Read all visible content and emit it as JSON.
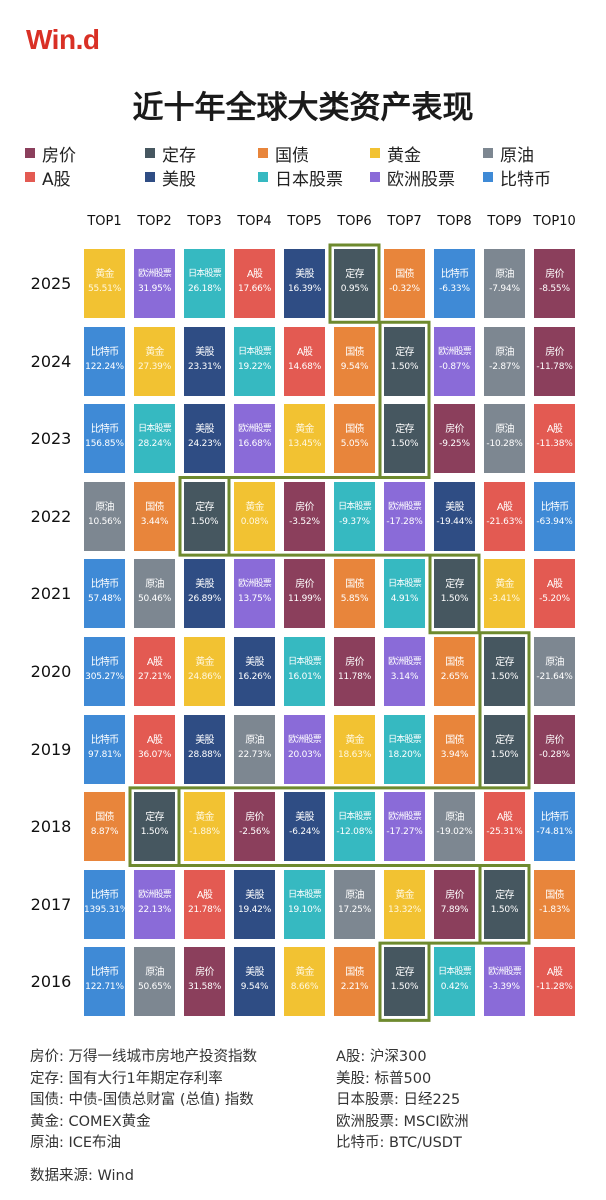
{
  "logo": "Win.d",
  "title": "近十年全球大类资产表现",
  "colors": {
    "房价": "#8b3f5c",
    "定存": "#465760",
    "国债": "#e8853b",
    "黄金": "#f2c232",
    "原油": "#7d8791",
    "A股": "#e35a52",
    "美股": "#2f4d84",
    "日本股票": "#36b9c1",
    "欧洲股票": "#8a6bd8",
    "比特币": "#3f8ad6"
  },
  "legend": [
    {
      "name": "房价",
      "color": "#8b3f5c"
    },
    {
      "name": "定存",
      "color": "#465760"
    },
    {
      "name": "国债",
      "color": "#e8853b"
    },
    {
      "name": "黄金",
      "color": "#f2c232"
    },
    {
      "name": "原油",
      "color": "#7d8791"
    },
    {
      "name": "A股",
      "color": "#e35a52"
    },
    {
      "name": "美股",
      "color": "#2f4d84"
    },
    {
      "name": "日本股票",
      "color": "#36b9c1"
    },
    {
      "name": "欧洲股票",
      "color": "#8a6bd8"
    },
    {
      "name": "比特币",
      "color": "#3f8ad6"
    }
  ],
  "chart_data": {
    "type": "table",
    "title": "近十年全球大类资产表现",
    "columns": [
      "TOP1",
      "TOP2",
      "TOP3",
      "TOP4",
      "TOP5",
      "TOP6",
      "TOP7",
      "TOP8",
      "TOP9",
      "TOP10"
    ],
    "highlight_asset": "定存",
    "rows": [
      {
        "year": "2025",
        "cells": [
          {
            "name": "黄金",
            "value": "55.51%"
          },
          {
            "name": "欧洲股票",
            "value": "31.95%"
          },
          {
            "name": "日本股票",
            "value": "26.18%"
          },
          {
            "name": "A股",
            "value": "17.66%"
          },
          {
            "name": "美股",
            "value": "16.39%"
          },
          {
            "name": "定存",
            "value": "0.95%"
          },
          {
            "name": "国债",
            "value": "-0.32%"
          },
          {
            "name": "比特币",
            "value": "-6.33%"
          },
          {
            "name": "原油",
            "value": "-7.94%"
          },
          {
            "name": "房价",
            "value": "-8.55%"
          }
        ]
      },
      {
        "year": "2024",
        "cells": [
          {
            "name": "比特币",
            "value": "122.24%"
          },
          {
            "name": "黄金",
            "value": "27.39%"
          },
          {
            "name": "美股",
            "value": "23.31%"
          },
          {
            "name": "日本股票",
            "value": "19.22%"
          },
          {
            "name": "A股",
            "value": "14.68%"
          },
          {
            "name": "国债",
            "value": "9.54%"
          },
          {
            "name": "定存",
            "value": "1.50%"
          },
          {
            "name": "欧洲股票",
            "value": "-0.87%"
          },
          {
            "name": "原油",
            "value": "-2.87%"
          },
          {
            "name": "房价",
            "value": "-11.78%"
          }
        ]
      },
      {
        "year": "2023",
        "cells": [
          {
            "name": "比特币",
            "value": "156.85%"
          },
          {
            "name": "日本股票",
            "value": "28.24%"
          },
          {
            "name": "美股",
            "value": "24.23%"
          },
          {
            "name": "欧洲股票",
            "value": "16.68%"
          },
          {
            "name": "黄金",
            "value": "13.45%"
          },
          {
            "name": "国债",
            "value": "5.05%"
          },
          {
            "name": "定存",
            "value": "1.50%"
          },
          {
            "name": "房价",
            "value": "-9.25%"
          },
          {
            "name": "原油",
            "value": "-10.28%"
          },
          {
            "name": "A股",
            "value": "-11.38%"
          }
        ]
      },
      {
        "year": "2022",
        "cells": [
          {
            "name": "原油",
            "value": "10.56%"
          },
          {
            "name": "国债",
            "value": "3.44%"
          },
          {
            "name": "定存",
            "value": "1.50%"
          },
          {
            "name": "黄金",
            "value": "0.08%"
          },
          {
            "name": "房价",
            "value": "-3.52%"
          },
          {
            "name": "日本股票",
            "value": "-9.37%"
          },
          {
            "name": "欧洲股票",
            "value": "-17.28%"
          },
          {
            "name": "美股",
            "value": "-19.44%"
          },
          {
            "name": "A股",
            "value": "-21.63%"
          },
          {
            "name": "比特币",
            "value": "-63.94%"
          }
        ]
      },
      {
        "year": "2021",
        "cells": [
          {
            "name": "比特币",
            "value": "57.48%"
          },
          {
            "name": "原油",
            "value": "50.46%"
          },
          {
            "name": "美股",
            "value": "26.89%"
          },
          {
            "name": "欧洲股票",
            "value": "13.75%"
          },
          {
            "name": "房价",
            "value": "11.99%"
          },
          {
            "name": "国债",
            "value": "5.85%"
          },
          {
            "name": "日本股票",
            "value": "4.91%"
          },
          {
            "name": "定存",
            "value": "1.50%"
          },
          {
            "name": "黄金",
            "value": "-3.41%"
          },
          {
            "name": "A股",
            "value": "-5.20%"
          }
        ]
      },
      {
        "year": "2020",
        "cells": [
          {
            "name": "比特币",
            "value": "305.27%"
          },
          {
            "name": "A股",
            "value": "27.21%"
          },
          {
            "name": "黄金",
            "value": "24.86%"
          },
          {
            "name": "美股",
            "value": "16.26%"
          },
          {
            "name": "日本股票",
            "value": "16.01%"
          },
          {
            "name": "房价",
            "value": "11.78%"
          },
          {
            "name": "欧洲股票",
            "value": "3.14%"
          },
          {
            "name": "国债",
            "value": "2.65%"
          },
          {
            "name": "定存",
            "value": "1.50%"
          },
          {
            "name": "原油",
            "value": "-21.64%"
          }
        ]
      },
      {
        "year": "2019",
        "cells": [
          {
            "name": "比特币",
            "value": "97.81%"
          },
          {
            "name": "A股",
            "value": "36.07%"
          },
          {
            "name": "美股",
            "value": "28.88%"
          },
          {
            "name": "原油",
            "value": "22.73%"
          },
          {
            "name": "欧洲股票",
            "value": "20.03%"
          },
          {
            "name": "黄金",
            "value": "18.63%"
          },
          {
            "name": "日本股票",
            "value": "18.20%"
          },
          {
            "name": "国债",
            "value": "3.94%"
          },
          {
            "name": "定存",
            "value": "1.50%"
          },
          {
            "name": "房价",
            "value": "-0.28%"
          }
        ]
      },
      {
        "year": "2018",
        "cells": [
          {
            "name": "国债",
            "value": "8.87%"
          },
          {
            "name": "定存",
            "value": "1.50%"
          },
          {
            "name": "黄金",
            "value": "-1.88%"
          },
          {
            "name": "房价",
            "value": "-2.56%"
          },
          {
            "name": "美股",
            "value": "-6.24%"
          },
          {
            "name": "日本股票",
            "value": "-12.08%"
          },
          {
            "name": "欧洲股票",
            "value": "-17.27%"
          },
          {
            "name": "原油",
            "value": "-19.02%"
          },
          {
            "name": "A股",
            "value": "-25.31%"
          },
          {
            "name": "比特币",
            "value": "-74.81%"
          }
        ]
      },
      {
        "year": "2017",
        "cells": [
          {
            "name": "比特币",
            "value": "1395.31%"
          },
          {
            "name": "欧洲股票",
            "value": "22.13%"
          },
          {
            "name": "A股",
            "value": "21.78%"
          },
          {
            "name": "美股",
            "value": "19.42%"
          },
          {
            "name": "日本股票",
            "value": "19.10%"
          },
          {
            "name": "原油",
            "value": "17.25%"
          },
          {
            "name": "黄金",
            "value": "13.32%"
          },
          {
            "name": "房价",
            "value": "7.89%"
          },
          {
            "name": "定存",
            "value": "1.50%"
          },
          {
            "name": "国债",
            "value": "-1.83%"
          }
        ]
      },
      {
        "year": "2016",
        "cells": [
          {
            "name": "比特币",
            "value": "122.71%"
          },
          {
            "name": "原油",
            "value": "50.65%"
          },
          {
            "name": "房价",
            "value": "31.58%"
          },
          {
            "name": "美股",
            "value": "9.54%"
          },
          {
            "name": "黄金",
            "value": "8.66%"
          },
          {
            "name": "国债",
            "value": "2.21%"
          },
          {
            "name": "定存",
            "value": "1.50%"
          },
          {
            "name": "日本股票",
            "value": "0.42%"
          },
          {
            "name": "欧洲股票",
            "value": "-3.39%"
          },
          {
            "name": "A股",
            "value": "-11.28%"
          }
        ]
      }
    ]
  },
  "notes_left": [
    "房价: 万得一线城市房地产投资指数",
    "定存: 国有大行1年期定存利率",
    "国债: 中债-国债总财富 (总值) 指数",
    "黄金: COMEX黄金",
    "原油: ICE布油"
  ],
  "notes_right": [
    "A股: 沪深300",
    "美股: 标普500",
    "日本股票: 日经225",
    "欧洲股票: MSCI欧洲",
    "比特币: BTC/USDT"
  ],
  "source": "数据来源: Wind"
}
